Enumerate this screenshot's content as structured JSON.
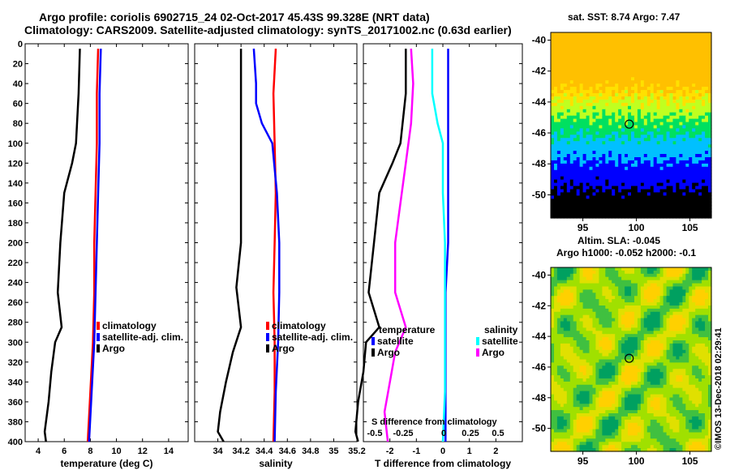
{
  "title": {
    "line1": "Argo profile: coriolis 6902715_24 02-Oct-2017 45.43S 99.328E (NRT data)",
    "line2": "Climatology: CARS2009. Satellite-adjusted climatology: synTS_20171002.nc (0.63d earlier)"
  },
  "maps": {
    "sst_title": "sat. SST: 8.74 Argo: 7.47",
    "sla_title1": "Altim. SLA: -0.045",
    "sla_title2": "Argo h1000: -0.052 h2000: -0.1",
    "lat_ticks": [
      "-40",
      "-42",
      "-44",
      "-46",
      "-48",
      "-50"
    ],
    "lon_ticks": [
      "95",
      "100",
      "105"
    ],
    "profile_lon": 99.328,
    "profile_lat": -45.43
  },
  "watermark": "©IMOS 13-Dec-2018 02:29:41",
  "colors": {
    "argo": "#000000",
    "climatology": "#ff0000",
    "satellite": "#0000ff",
    "sal_sat": "#00ffff",
    "sal_argo": "#ff00ff"
  },
  "chart_data": [
    {
      "type": "line",
      "xlabel": "temperature (deg C)",
      "ylabel": "",
      "xlim": [
        3,
        15.5
      ],
      "ylim": [
        400,
        0
      ],
      "xticks": [
        4,
        6,
        8,
        10,
        12,
        14
      ],
      "yticks": [
        0,
        20,
        40,
        60,
        80,
        100,
        120,
        140,
        160,
        180,
        200,
        220,
        240,
        260,
        280,
        300,
        320,
        340,
        360,
        380,
        400
      ],
      "legend": [
        "climatology",
        "satellite-adj. clim.",
        "Argo"
      ],
      "series": [
        {
          "name": "climatology",
          "depth": [
            5,
            50,
            100,
            150,
            200,
            250,
            300,
            350,
            400
          ],
          "values": [
            8.6,
            8.5,
            8.5,
            8.4,
            8.3,
            8.3,
            8.2,
            8.0,
            7.8
          ]
        },
        {
          "name": "satellite-adj. clim.",
          "depth": [
            5,
            50,
            100,
            150,
            200,
            250,
            300,
            350,
            400
          ],
          "values": [
            8.8,
            8.7,
            8.7,
            8.6,
            8.5,
            8.4,
            8.3,
            8.1,
            7.9
          ]
        },
        {
          "name": "Argo",
          "depth": [
            5,
            50,
            100,
            120,
            150,
            200,
            250,
            285,
            300,
            330,
            360,
            390,
            400
          ],
          "values": [
            7.2,
            7.1,
            6.9,
            6.6,
            6.0,
            5.7,
            5.5,
            5.8,
            5.3,
            5.0,
            4.8,
            4.5,
            4.6
          ]
        }
      ]
    },
    {
      "type": "line",
      "xlabel": "salinity",
      "xlim": [
        33.8,
        35.2
      ],
      "ylim": [
        400,
        0
      ],
      "xticks": [
        "34",
        "34.2",
        "34.4",
        "34.6",
        "34.8",
        "35",
        "35.2"
      ],
      "legend": [
        "climatology",
        "satellite-adj. clim.",
        "Argo"
      ],
      "series": [
        {
          "name": "climatology",
          "depth": [
            5,
            50,
            100,
            150,
            200,
            250,
            300,
            350,
            400
          ],
          "values": [
            34.5,
            34.48,
            34.49,
            34.5,
            34.49,
            34.48,
            34.49,
            34.49,
            34.48
          ]
        },
        {
          "name": "satellite-adj. clim.",
          "depth": [
            5,
            40,
            60,
            80,
            100,
            150,
            200,
            250,
            300,
            350,
            400
          ],
          "values": [
            34.31,
            34.33,
            34.33,
            34.38,
            34.47,
            34.51,
            34.53,
            34.53,
            34.52,
            34.5,
            34.49
          ]
        },
        {
          "name": "Argo",
          "depth": [
            5,
            100,
            150,
            200,
            245,
            285,
            310,
            340,
            370,
            390,
            400
          ],
          "values": [
            34.2,
            34.2,
            34.2,
            34.2,
            34.16,
            34.2,
            34.13,
            34.07,
            34.02,
            34.0,
            34.05
          ]
        }
      ]
    },
    {
      "type": "line",
      "xlabel": "T difference from climatology",
      "xlim": [
        -3,
        3
      ],
      "ylim": [
        400,
        0
      ],
      "xticks": [
        "-2",
        "-1",
        "0",
        "1",
        "2"
      ],
      "secondary_xlabel": "S difference from climatology",
      "secondary_xticks": [
        "-0.5",
        "-0.25",
        "0",
        "0.25",
        "0.5"
      ],
      "legend": {
        "temperature": [
          "satellite",
          "Argo"
        ],
        "salinity": [
          "satellite",
          "Argo"
        ]
      },
      "series": [
        {
          "name": "temperature satellite",
          "depth": [
            5,
            50,
            100,
            150,
            200,
            250,
            300,
            350,
            400
          ],
          "values": [
            0.2,
            0.2,
            0.2,
            0.2,
            0.2,
            0.1,
            0.1,
            0.1,
            0.1
          ]
        },
        {
          "name": "temperature Argo",
          "depth": [
            5,
            50,
            100,
            120,
            150,
            200,
            250,
            285,
            300,
            330,
            360,
            390,
            400
          ],
          "values": [
            -1.4,
            -1.4,
            -1.6,
            -1.9,
            -2.4,
            -2.6,
            -2.8,
            -2.4,
            -2.9,
            -3.0,
            -3.2,
            -3.3,
            -3.2
          ]
        },
        {
          "name": "salinity satellite",
          "depth": [
            5,
            50,
            80,
            100,
            150,
            200,
            250,
            300,
            350,
            400
          ],
          "values": [
            -0.1,
            -0.1,
            -0.05,
            0.0,
            0.0,
            0.02,
            0.02,
            0.02,
            0.02,
            0.0
          ]
        },
        {
          "name": "salinity Argo",
          "depth": [
            5,
            40,
            80,
            120,
            160,
            200,
            250,
            285,
            310,
            340,
            370,
            400
          ],
          "values": [
            -0.3,
            -0.28,
            -0.3,
            -0.35,
            -0.4,
            -0.45,
            -0.45,
            -0.35,
            -0.45,
            -0.5,
            -0.55,
            -0.52
          ]
        }
      ]
    }
  ]
}
